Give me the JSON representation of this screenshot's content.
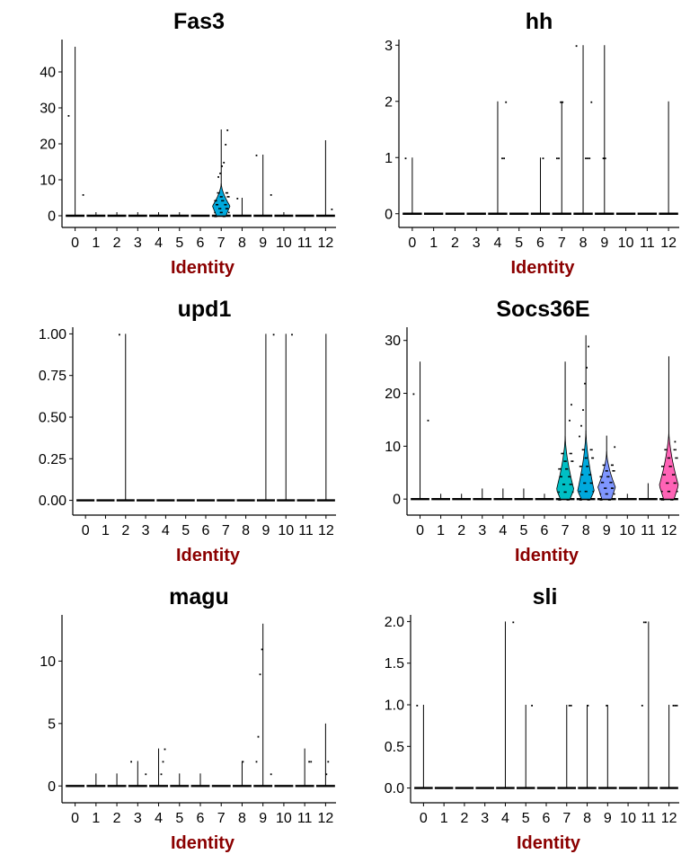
{
  "theme": {
    "identity_color": "#8B0000",
    "axis_color": "#000000"
  },
  "chart_data": [
    {
      "type": "violin",
      "title": "Fas3",
      "xlabel": "Identity",
      "ylabel": "",
      "categories": [
        "0",
        "1",
        "2",
        "3",
        "4",
        "5",
        "6",
        "7",
        "8",
        "9",
        "10",
        "11",
        "12"
      ],
      "ylim": [
        -1,
        49
      ],
      "yticks": [
        0,
        10,
        20,
        30,
        40
      ],
      "ytick_labels": [
        "0",
        "10",
        "20",
        "30",
        "40"
      ],
      "max_values": [
        47,
        1,
        1,
        1,
        1,
        1,
        0,
        24,
        5,
        17,
        1,
        0,
        21
      ],
      "violins": [
        {
          "category": "7",
          "color": "#00A9DD",
          "max": 9,
          "peak_width": 0.42,
          "peak_at": 0.3
        }
      ],
      "outlier_points": [
        {
          "category": "0",
          "y": 28
        },
        {
          "category": "0",
          "y": 6
        },
        {
          "category": "7",
          "y": 24
        },
        {
          "category": "7",
          "y": 20
        },
        {
          "category": "7",
          "y": 15
        },
        {
          "category": "7",
          "y": 14
        },
        {
          "category": "7",
          "y": 12
        },
        {
          "category": "7",
          "y": 11
        },
        {
          "category": "8",
          "y": 5
        },
        {
          "category": "9",
          "y": 17
        },
        {
          "category": "9",
          "y": 6
        },
        {
          "category": "12",
          "y": 2
        }
      ]
    },
    {
      "type": "violin",
      "title": "hh",
      "xlabel": "Identity",
      "ylabel": "",
      "categories": [
        "0",
        "1",
        "2",
        "3",
        "4",
        "5",
        "6",
        "7",
        "8",
        "9",
        "10",
        "11",
        "12"
      ],
      "ylim": [
        -0.1,
        3.1
      ],
      "yticks": [
        0,
        1,
        2,
        3
      ],
      "ytick_labels": [
        "0",
        "1",
        "2",
        "3"
      ],
      "max_values": [
        1,
        0,
        0,
        0,
        2,
        0,
        1,
        2,
        3,
        3,
        0,
        0,
        2
      ],
      "violins": [],
      "outlier_points": [
        {
          "category": "0",
          "y": 1
        },
        {
          "category": "4",
          "y": 2
        },
        {
          "category": "4",
          "y": 1
        },
        {
          "category": "4",
          "y": 1
        },
        {
          "category": "6",
          "y": 1
        },
        {
          "category": "7",
          "y": 2
        },
        {
          "category": "7",
          "y": 2
        },
        {
          "category": "7",
          "y": 1
        },
        {
          "category": "7",
          "y": 1
        },
        {
          "category": "8",
          "y": 3
        },
        {
          "category": "8",
          "y": 2
        },
        {
          "category": "8",
          "y": 1
        },
        {
          "category": "8",
          "y": 1
        },
        {
          "category": "8",
          "y": 1
        },
        {
          "category": "9",
          "y": 1
        },
        {
          "category": "9",
          "y": 1
        }
      ]
    },
    {
      "type": "violin",
      "title": "upd1",
      "xlabel": "Identity",
      "ylabel": "",
      "categories": [
        "0",
        "1",
        "2",
        "3",
        "4",
        "5",
        "6",
        "7",
        "8",
        "9",
        "10",
        "11",
        "12"
      ],
      "ylim": [
        -0.04,
        1.04
      ],
      "yticks": [
        0,
        0.25,
        0.5,
        0.75,
        1.0
      ],
      "ytick_labels": [
        "0.00",
        "0.25",
        "0.50",
        "0.75",
        "1.00"
      ],
      "max_values": [
        0,
        0,
        1,
        0,
        0,
        0,
        0,
        0,
        0,
        1,
        1,
        0,
        1
      ],
      "violins": [],
      "outlier_points": [
        {
          "category": "2",
          "y": 1
        },
        {
          "category": "9",
          "y": 1
        },
        {
          "category": "10",
          "y": 1
        }
      ]
    },
    {
      "type": "violin",
      "title": "Socs36E",
      "xlabel": "Identity",
      "ylabel": "",
      "categories": [
        "0",
        "1",
        "2",
        "3",
        "4",
        "5",
        "6",
        "7",
        "8",
        "9",
        "10",
        "11",
        "12"
      ],
      "ylim": [
        -1.5,
        32.5
      ],
      "yticks": [
        0,
        10,
        20,
        30
      ],
      "ytick_labels": [
        "0",
        "10",
        "20",
        "30"
      ],
      "max_values": [
        26,
        1,
        1,
        2,
        2,
        2,
        1,
        26,
        31,
        12,
        1,
        3,
        27
      ],
      "violins": [
        {
          "category": "7",
          "color": "#00BFC4",
          "max": 12,
          "peak_width": 0.42,
          "peak_at": 0.15
        },
        {
          "category": "8",
          "color": "#00A9DD",
          "max": 13,
          "peak_width": 0.4,
          "peak_at": 0.12
        },
        {
          "category": "9",
          "color": "#7F96FF",
          "max": 9,
          "peak_width": 0.42,
          "peak_at": 0.25
        },
        {
          "category": "12",
          "color": "#FF63B6",
          "max": 13,
          "peak_width": 0.46,
          "peak_at": 0.2
        }
      ],
      "outlier_points": [
        {
          "category": "0",
          "y": 20
        },
        {
          "category": "0",
          "y": 15
        },
        {
          "category": "7",
          "y": 18
        },
        {
          "category": "7",
          "y": 15
        },
        {
          "category": "8",
          "y": 29
        },
        {
          "category": "8",
          "y": 25
        },
        {
          "category": "8",
          "y": 22
        },
        {
          "category": "8",
          "y": 17
        },
        {
          "category": "8",
          "y": 14
        },
        {
          "category": "8",
          "y": 12
        },
        {
          "category": "9",
          "y": 10
        },
        {
          "category": "12",
          "y": 11
        }
      ]
    },
    {
      "type": "violin",
      "title": "magu",
      "xlabel": "Identity",
      "ylabel": "",
      "categories": [
        "0",
        "1",
        "2",
        "3",
        "4",
        "5",
        "6",
        "7",
        "8",
        "9",
        "10",
        "11",
        "12"
      ],
      "ylim": [
        -0.7,
        13.7
      ],
      "yticks": [
        0,
        5,
        10
      ],
      "ytick_labels": [
        "0",
        "5",
        "10"
      ],
      "max_values": [
        0,
        1,
        1,
        2,
        3,
        1,
        1,
        0,
        2,
        13,
        0,
        3,
        5
      ],
      "violins": [],
      "outlier_points": [
        {
          "category": "3",
          "y": 2
        },
        {
          "category": "3",
          "y": 1
        },
        {
          "category": "4",
          "y": 3
        },
        {
          "category": "4",
          "y": 2
        },
        {
          "category": "4",
          "y": 1
        },
        {
          "category": "8",
          "y": 2
        },
        {
          "category": "9",
          "y": 11
        },
        {
          "category": "9",
          "y": 9
        },
        {
          "category": "9",
          "y": 4
        },
        {
          "category": "9",
          "y": 2
        },
        {
          "category": "9",
          "y": 1
        },
        {
          "category": "11",
          "y": 2
        },
        {
          "category": "11",
          "y": 2
        },
        {
          "category": "12",
          "y": 2
        },
        {
          "category": "12",
          "y": 1
        }
      ]
    },
    {
      "type": "violin",
      "title": "sli",
      "xlabel": "Identity",
      "ylabel": "",
      "categories": [
        "0",
        "1",
        "2",
        "3",
        "4",
        "5",
        "6",
        "7",
        "8",
        "9",
        "10",
        "11",
        "12"
      ],
      "ylim": [
        -0.08,
        2.08
      ],
      "yticks": [
        0,
        0.5,
        1.0,
        1.5,
        2.0
      ],
      "ytick_labels": [
        "0.0",
        "0.5",
        "1.0",
        "1.5",
        "2.0"
      ],
      "max_values": [
        1,
        0,
        0,
        0,
        2,
        1,
        0,
        1,
        1,
        1,
        0,
        2,
        1
      ],
      "violins": [],
      "outlier_points": [
        {
          "category": "0",
          "y": 1
        },
        {
          "category": "4",
          "y": 2
        },
        {
          "category": "5",
          "y": 1
        },
        {
          "category": "7",
          "y": 1
        },
        {
          "category": "7",
          "y": 1
        },
        {
          "category": "8",
          "y": 1
        },
        {
          "category": "9",
          "y": 1
        },
        {
          "category": "11",
          "y": 2
        },
        {
          "category": "11",
          "y": 2
        },
        {
          "category": "11",
          "y": 1
        },
        {
          "category": "12",
          "y": 1
        },
        {
          "category": "12",
          "y": 1
        },
        {
          "category": "12",
          "y": 1
        }
      ]
    }
  ]
}
